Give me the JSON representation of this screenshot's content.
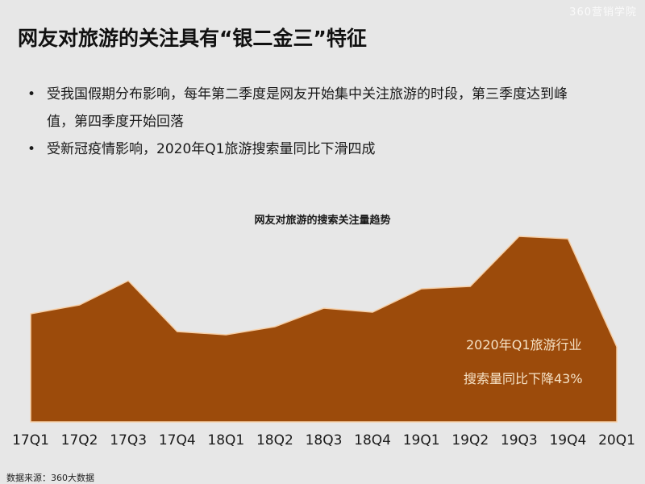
{
  "logo_text": "360营销学院",
  "title": "网友对旅游的关注具有“银二金三”特征",
  "bullets": [
    "受我国假期分布影响，每年第二季度是网友开始集中关注旅游的时段，第三季度达到峰值，第四季度开始回落",
    "受新冠疫情影响，2020年Q1旅游搜索量同比下滑四成"
  ],
  "bullet_symbol": "•",
  "chart_data": {
    "type": "area",
    "title": "网友对旅游的搜索关注量趋势",
    "categories": [
      "17Q1",
      "17Q2",
      "17Q3",
      "17Q4",
      "18Q1",
      "18Q2",
      "18Q3",
      "18Q4",
      "19Q1",
      "19Q2",
      "19Q3",
      "19Q4",
      "20Q1"
    ],
    "values": [
      134,
      145,
      175,
      112,
      108,
      118,
      141,
      136,
      165,
      168,
      230,
      227,
      93
    ],
    "ylim": [
      0,
      240
    ],
    "grid": false,
    "y_axis_shown": false,
    "fill_color": "#9c4b0b",
    "edge_color": "#f7cfa6",
    "annotations": [
      "2020年Q1旅游行业",
      "搜索量同比下降43%"
    ]
  },
  "source": "数据来源：360大数据"
}
